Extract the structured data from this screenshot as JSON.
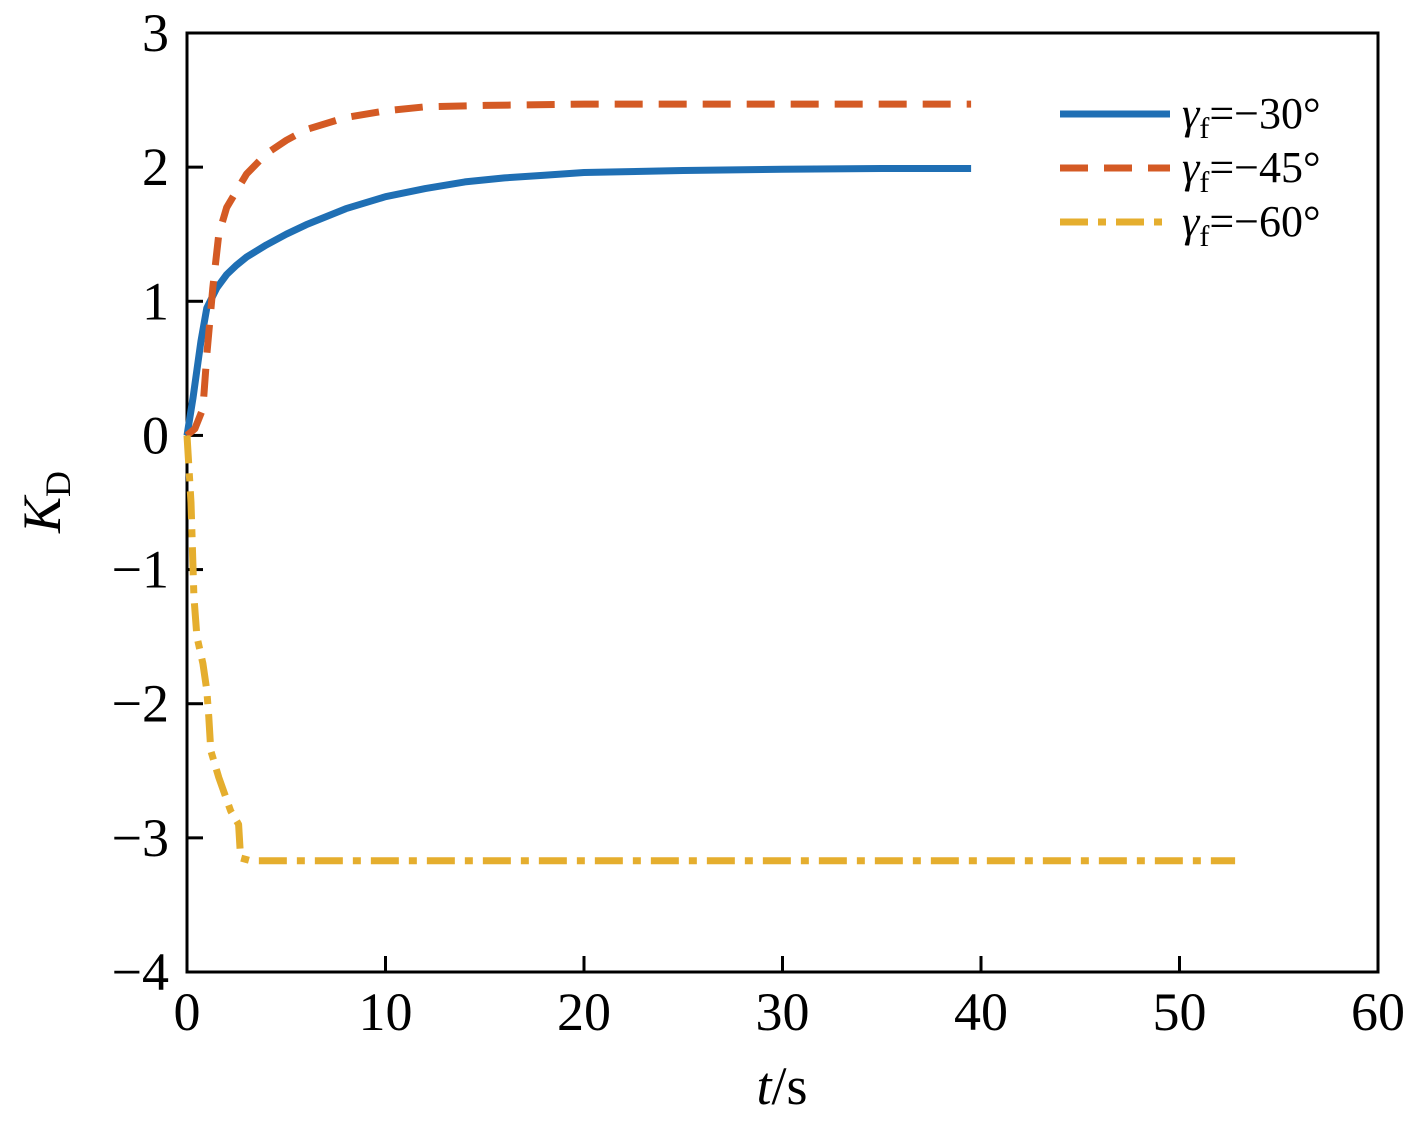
{
  "chart_data": {
    "type": "line",
    "title": "",
    "xlabel": {
      "var": "t",
      "unit": "/s"
    },
    "ylabel": {
      "var": "K",
      "sub": "D"
    },
    "xlim": [
      0,
      60
    ],
    "ylim": [
      -4,
      3
    ],
    "xticks": [
      0,
      10,
      20,
      30,
      40,
      50,
      60
    ],
    "yticks": [
      3,
      2,
      1,
      0,
      -1,
      -2,
      -3,
      -4
    ],
    "ytick_labels": [
      "3",
      "2",
      "1",
      "0",
      "−1",
      "−2",
      "−3",
      "−4"
    ],
    "grid": false,
    "legend_position": "top-right",
    "series": [
      {
        "name": "γf=−30°",
        "legend": {
          "sym": "γ",
          "sub": "f",
          "val": "=−30°"
        },
        "color": "#1f6fb4",
        "style": "solid",
        "x": [
          0,
          0.3,
          0.7,
          1.0,
          1.5,
          2.0,
          2.5,
          3,
          4,
          5,
          6,
          8,
          10,
          12,
          14,
          16,
          18,
          20,
          25,
          30,
          35,
          39.5
        ],
        "y": [
          0,
          0.28,
          0.7,
          0.95,
          1.1,
          1.2,
          1.27,
          1.33,
          1.42,
          1.5,
          1.57,
          1.69,
          1.78,
          1.84,
          1.89,
          1.92,
          1.94,
          1.96,
          1.975,
          1.985,
          1.99,
          1.99
        ]
      },
      {
        "name": "γf=−45°",
        "legend": {
          "sym": "γ",
          "sub": "f",
          "val": "=−45°"
        },
        "color": "#d45a24",
        "style": "dashed",
        "x": [
          0,
          0.4,
          0.8,
          1.0,
          1.3,
          1.6,
          2.0,
          3,
          4,
          5,
          6,
          8,
          10,
          12,
          15,
          20,
          30,
          39.5
        ],
        "y": [
          0,
          0.05,
          0.2,
          0.6,
          1.1,
          1.5,
          1.7,
          1.95,
          2.1,
          2.2,
          2.28,
          2.37,
          2.42,
          2.45,
          2.46,
          2.47,
          2.47,
          2.47
        ]
      },
      {
        "name": "γf=−60°",
        "legend": {
          "sym": "γ",
          "sub": "f",
          "val": "=−60°"
        },
        "color": "#e5ae2e",
        "style": "dashdot",
        "x": [
          0,
          0.2,
          0.35,
          0.5,
          0.8,
          1.0,
          1.1,
          1.2,
          1.6,
          2.2,
          2.6,
          2.7,
          3.2,
          10,
          20,
          30,
          40,
          52.8
        ],
        "y": [
          0,
          -0.5,
          -1.2,
          -1.5,
          -1.7,
          -1.9,
          -2.1,
          -2.35,
          -2.55,
          -2.8,
          -2.9,
          -3.15,
          -3.17,
          -3.17,
          -3.17,
          -3.17,
          -3.17,
          -3.17
        ]
      }
    ]
  }
}
